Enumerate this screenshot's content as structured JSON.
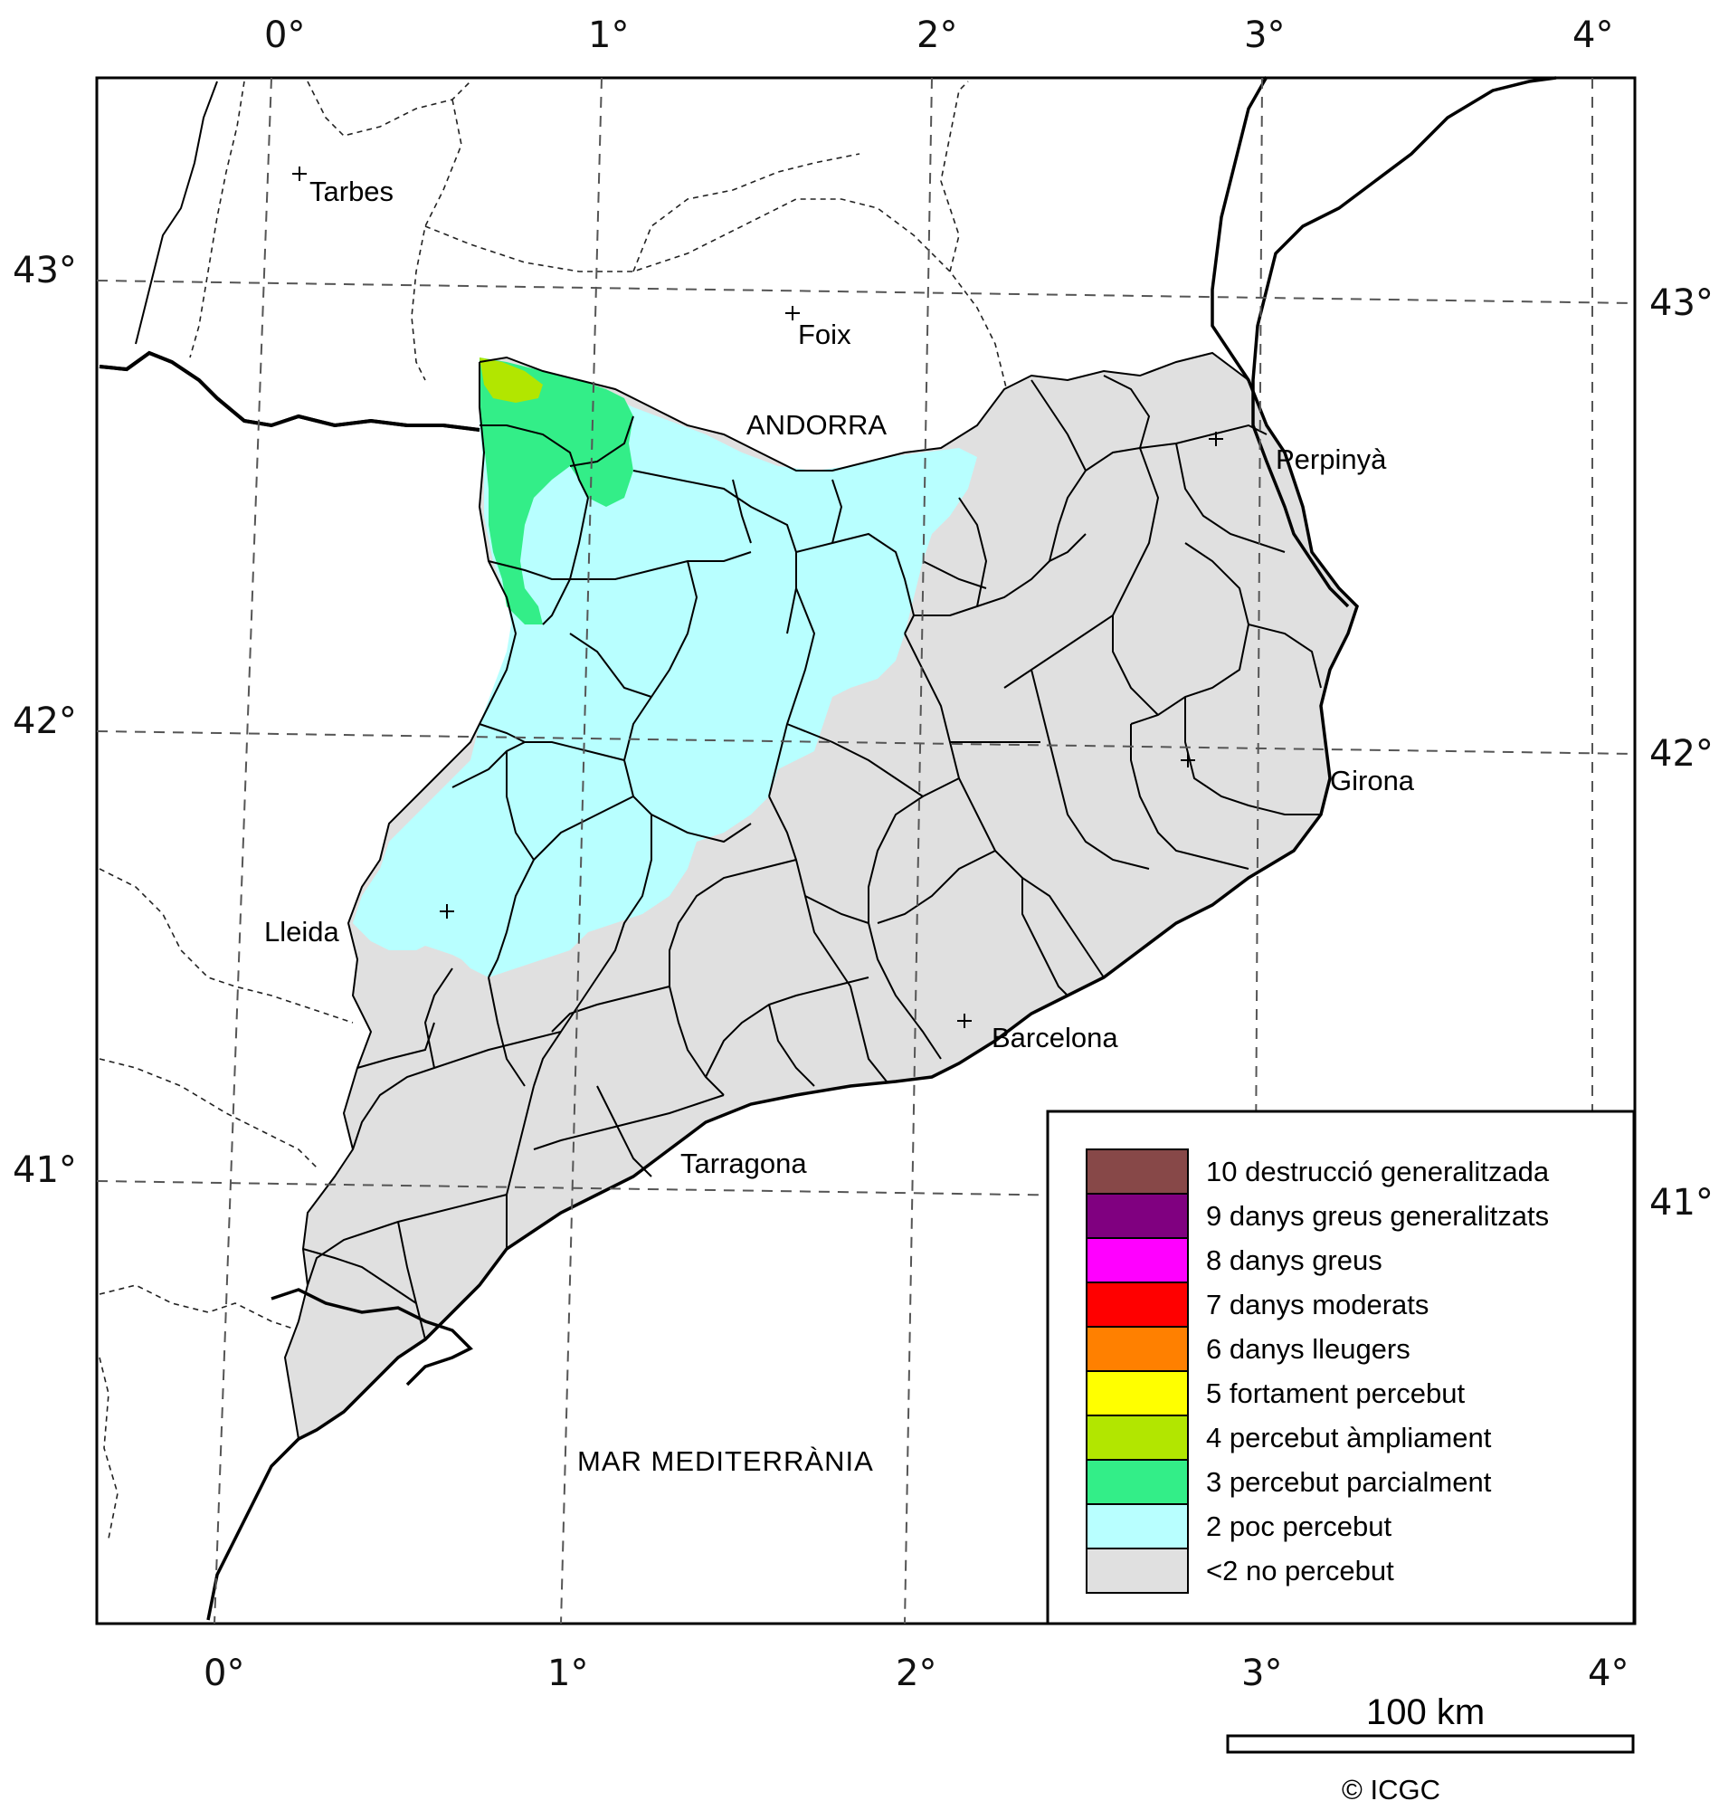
{
  "map": {
    "axis_labels": {
      "top": [
        "0°",
        "1°",
        "2°",
        "3°",
        "4°"
      ],
      "bottom": [
        "0°",
        "1°",
        "2°",
        "3°",
        "4°"
      ],
      "left": [
        "43°",
        "42°",
        "41°"
      ],
      "right": [
        "43°",
        "42°",
        "41°"
      ]
    },
    "places": [
      "Tarbes",
      "Foix",
      "ANDORRA",
      "Perpinyà",
      "Girona",
      "Lleida",
      "Barcelona",
      "Tarragona"
    ],
    "sea_label": "MAR MEDITERRÀNIA",
    "intensity_colors": {
      "level_4": "#b2e600",
      "level_3": "#33ee88",
      "level_2": "#b8ffff",
      "below_2": "#e0e0e0"
    }
  },
  "legend": {
    "items": [
      {
        "label": "10 destrucció generalitzada",
        "color": "#874848"
      },
      {
        "label": "9 danys greus generalitzats",
        "color": "#800080"
      },
      {
        "label": "8 danys greus",
        "color": "#ff00ff"
      },
      {
        "label": "7 danys moderats",
        "color": "#ff0000"
      },
      {
        "label": "6 danys lleugers",
        "color": "#ff8000"
      },
      {
        "label": "5 fortament percebut",
        "color": "#ffff00"
      },
      {
        "label": "4 percebut àmpliament",
        "color": "#b2e600"
      },
      {
        "label": "3 percebut parcialment",
        "color": "#33ee88"
      },
      {
        "label": "2 poc percebut",
        "color": "#b8ffff"
      },
      {
        "label": "<2 no percebut",
        "color": "#e0e0e0"
      }
    ]
  },
  "scale": {
    "label": "100 km"
  },
  "copyright": "© ICGC"
}
